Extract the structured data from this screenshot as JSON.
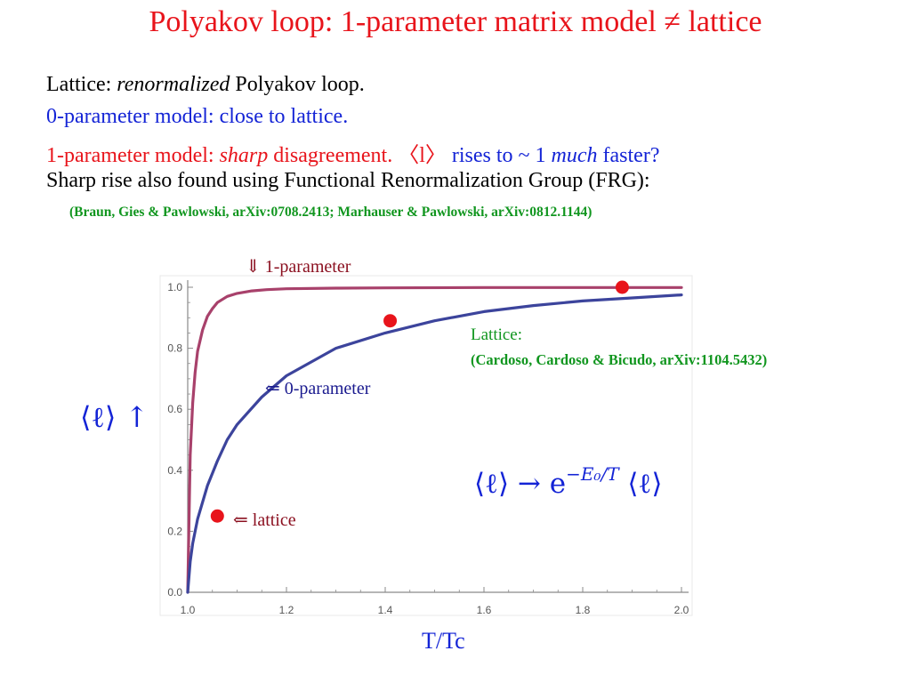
{
  "slide": {
    "title": "Polyakov loop: 1-parameter matrix model ≠ lattice",
    "line1": {
      "pre": "Lattice: ",
      "em": "renormalized",
      "post": " Polyakov loop."
    },
    "line2": "0-parameter model: close to lattice.",
    "line3": {
      "pre": "1-parameter model: ",
      "em": "sharp",
      "mid": " disagreement.   〈l〉   ",
      "blue_a": "rises to ~ 1 ",
      "blue_em": "much",
      "blue_b": " faster?"
    },
    "line4": "Sharp rise also found using Functional Renormalization Group (FRG):",
    "ref_frg": "(Braun, Gies & Pawlowski, arXiv:0708.2413; Marhauser & Pawlowski, arXiv:0812.1144)"
  },
  "annotations": {
    "one_param": "⇓ 1-parameter",
    "zero_param": "⇐ 0-parameter",
    "lattice_arrow": "⇐ lattice",
    "lattice_note": "Lattice:",
    "lattice_ref": "(Cardoso, Cardoso & Bicudo, arXiv:1104.5432)",
    "y_label": "⟨ℓ⟩ ↑",
    "formula_lhs": "⟨ℓ⟩ → e",
    "formula_exp": "−E₀/T",
    "formula_rhs": " ⟨ℓ⟩",
    "x_label": "T/Tc"
  },
  "colors": {
    "title_red": "#e8141b",
    "text_blue": "#1424d6",
    "ref_green": "#11961f",
    "one_param_curve": "#a8416b",
    "zero_param_curve": "#3c449c",
    "lattice_points": "#e8141b"
  },
  "chart_data": {
    "type": "line",
    "x_ticks": [
      "1.0",
      "1.2",
      "1.4",
      "1.6",
      "1.8",
      "2.0"
    ],
    "y_ticks": [
      "0.0",
      "0.2",
      "0.4",
      "0.6",
      "0.8",
      "1.0"
    ],
    "xlim": [
      1.0,
      2.0
    ],
    "ylim": [
      0.0,
      1.0
    ],
    "grid": false,
    "series": [
      {
        "name": "1-parameter",
        "x": [
          1.0,
          1.005,
          1.01,
          1.015,
          1.02,
          1.03,
          1.04,
          1.05,
          1.06,
          1.08,
          1.1,
          1.13,
          1.16,
          1.2,
          1.3,
          1.4,
          1.6,
          1.8,
          2.0
        ],
        "y": [
          0.0,
          0.45,
          0.62,
          0.72,
          0.79,
          0.86,
          0.905,
          0.93,
          0.95,
          0.97,
          0.98,
          0.988,
          0.992,
          0.995,
          0.997,
          0.998,
          0.999,
          0.999,
          0.999
        ]
      },
      {
        "name": "0-parameter",
        "x": [
          1.0,
          1.005,
          1.01,
          1.02,
          1.04,
          1.06,
          1.08,
          1.1,
          1.15,
          1.2,
          1.3,
          1.4,
          1.5,
          1.6,
          1.7,
          1.8,
          1.9,
          2.0
        ],
        "y": [
          0.0,
          0.1,
          0.16,
          0.24,
          0.35,
          0.43,
          0.5,
          0.55,
          0.64,
          0.71,
          0.8,
          0.85,
          0.89,
          0.92,
          0.94,
          0.955,
          0.965,
          0.975
        ]
      },
      {
        "name": "lattice",
        "x": [
          1.06,
          1.41,
          1.88
        ],
        "y": [
          0.25,
          0.89,
          1.0
        ]
      }
    ]
  }
}
